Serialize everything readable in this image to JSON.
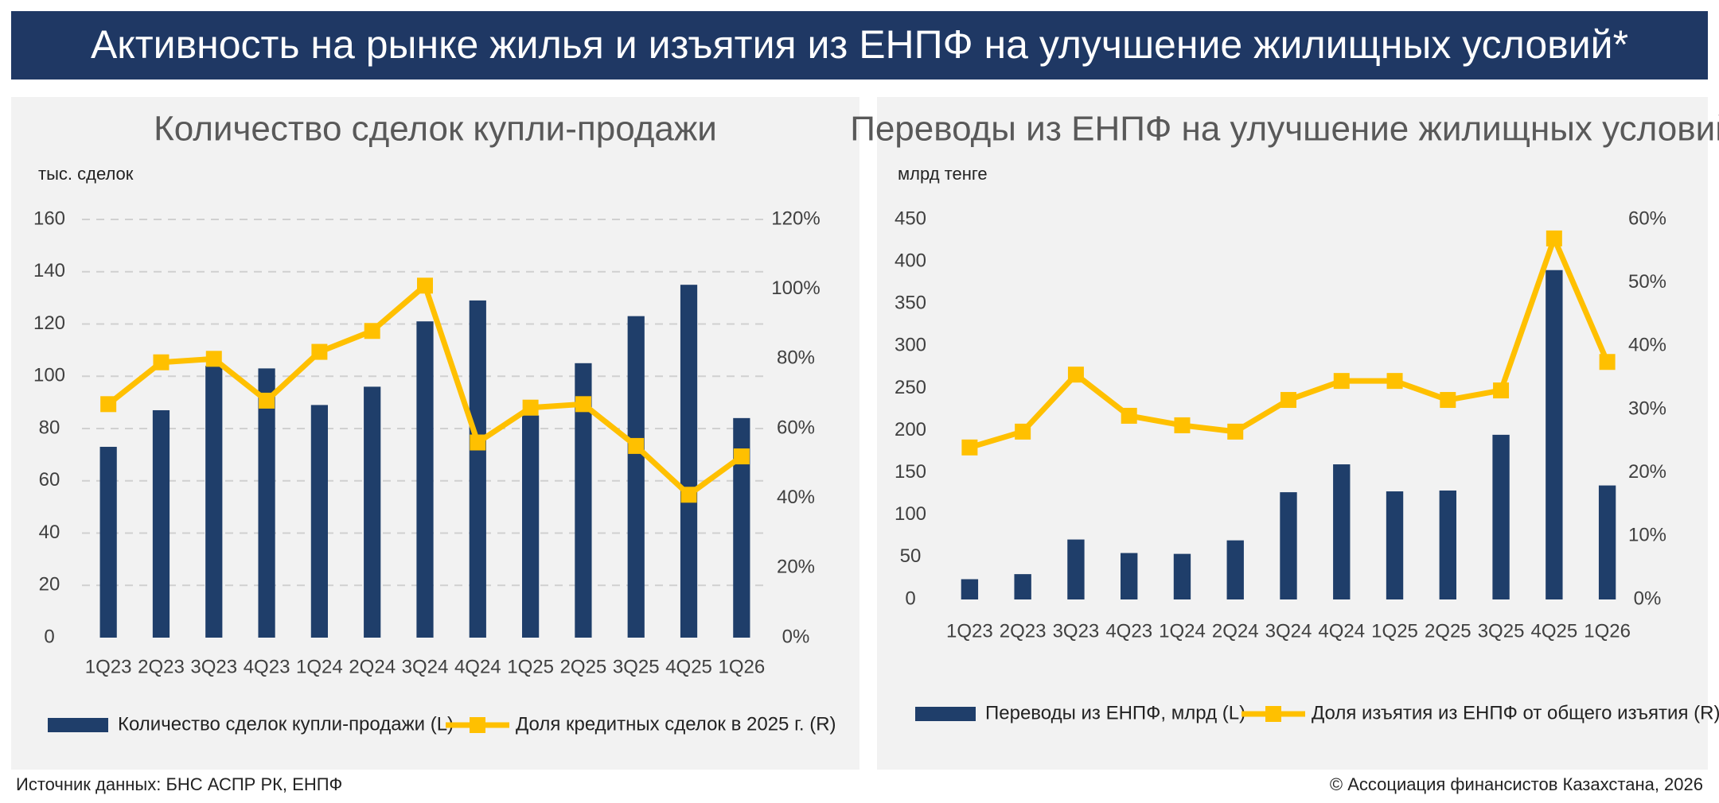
{
  "title": "Активность на рынке жилья и изъятия из ЕНПФ на улучшение жилищных условий*",
  "source": "Источник данных: БНС АСПР РК, ЕНПФ",
  "copyright": "© Ассоциация финансистов Казахстана, 2026",
  "chart_data": [
    {
      "type": "bar",
      "title": "Количество сделок купли-продажи",
      "y_label": "тыс. сделок",
      "categories": [
        "1Q23",
        "2Q23",
        "3Q23",
        "4Q23",
        "1Q24",
        "2Q24",
        "3Q24",
        "4Q24",
        "1Q25",
        "2Q25",
        "3Q25",
        "4Q25",
        "1Q26"
      ],
      "series": [
        {
          "name": "Количество сделок купли-продажи (L)",
          "type": "bar",
          "color": "#1f3e6a",
          "values": [
            73,
            87,
            104,
            103,
            89,
            96,
            121,
            129,
            85,
            105,
            123,
            135,
            84
          ]
        },
        {
          "name": "Доля кредитных сделок в 2025 г. (R)",
          "type": "line",
          "axis": "y2",
          "color": "#ffc000",
          "values": [
            67,
            79,
            80,
            68,
            82,
            88,
            101,
            56,
            66,
            67,
            55,
            41,
            52
          ]
        }
      ],
      "ylim": [
        0,
        160
      ],
      "yticks": [
        0,
        20,
        40,
        60,
        80,
        100,
        120,
        140,
        160
      ],
      "y2lim": [
        0,
        120
      ],
      "y2ticks": [
        {
          "value": 0,
          "label": "0%"
        },
        {
          "value": 20,
          "label": "20%"
        },
        {
          "value": 40,
          "label": "40%"
        },
        {
          "value": 60,
          "label": "60%"
        },
        {
          "value": 80,
          "label": "80%"
        },
        {
          "value": 100,
          "label": "100%"
        },
        {
          "value": 120,
          "label": "120%"
        }
      ],
      "grid": true
    },
    {
      "type": "bar",
      "title": "Переводы из ЕНПФ на улучшение жилищных условий",
      "y_label": "млрд тенге",
      "categories": [
        "1Q23",
        "2Q23",
        "3Q23",
        "4Q23",
        "1Q24",
        "2Q24",
        "3Q24",
        "4Q24",
        "1Q25",
        "2Q25",
        "3Q25",
        "4Q25",
        "1Q26"
      ],
      "series": [
        {
          "name": "Переводы из ЕНПФ, млрд (L)",
          "type": "bar",
          "color": "#1f3e6a",
          "values": [
            24,
            30,
            71,
            55,
            54,
            70,
            127,
            160,
            128,
            129,
            195,
            390,
            135
          ]
        },
        {
          "name": "Доля изъятия из ЕНПФ от общего изъятия (R)",
          "type": "line",
          "axis": "y2",
          "color": "#ffc000",
          "values": [
            24,
            26.5,
            35.5,
            29,
            27.5,
            26.5,
            31.5,
            34.5,
            34.5,
            31.5,
            33,
            57,
            37.5
          ]
        }
      ],
      "ylim": [
        0,
        450
      ],
      "yticks": [
        0,
        50,
        100,
        150,
        200,
        250,
        300,
        350,
        400,
        450
      ],
      "y2lim": [
        0,
        60
      ],
      "y2ticks": [
        {
          "value": 0,
          "label": "0%"
        },
        {
          "value": 10,
          "label": "10%"
        },
        {
          "value": 20,
          "label": "20%"
        },
        {
          "value": 30,
          "label": "30%"
        },
        {
          "value": 40,
          "label": "40%"
        },
        {
          "value": 50,
          "label": "50%"
        },
        {
          "value": 60,
          "label": "60%"
        }
      ],
      "grid": false
    }
  ]
}
